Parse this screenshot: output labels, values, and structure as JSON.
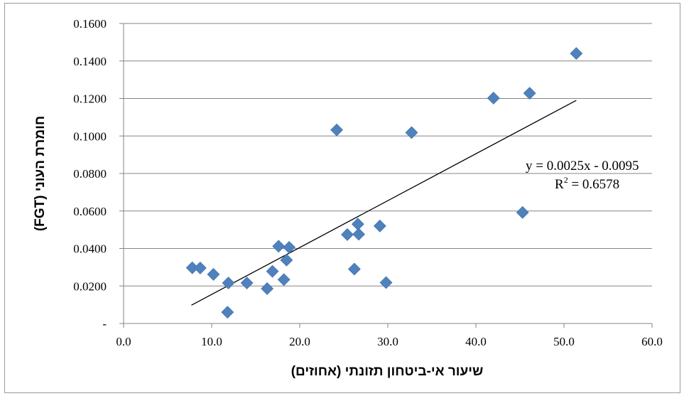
{
  "chart_data": {
    "type": "scatter",
    "title": "",
    "xlabel": "שיעור אי-ביטחון תזונתי (אחוזים)",
    "ylabel": "חומרת העוני (FGT)",
    "xlim": [
      0,
      60
    ],
    "ylim": [
      0,
      0.16
    ],
    "x_ticks": [
      "0.0",
      "10.0",
      "20.0",
      "30.0",
      "40.0",
      "50.0",
      "60.0"
    ],
    "y_ticks": [
      "-",
      "0.0200",
      "0.0400",
      "0.0600",
      "0.0800",
      "0.1000",
      "0.1200",
      "0.1400",
      "0.1600"
    ],
    "grid": "horizontal",
    "legend": "none",
    "marker_color": "#4f81bd",
    "points": [
      {
        "x": 7.8,
        "y": 0.0297
      },
      {
        "x": 8.7,
        "y": 0.0296
      },
      {
        "x": 10.2,
        "y": 0.0262
      },
      {
        "x": 11.8,
        "y": 0.006
      },
      {
        "x": 11.9,
        "y": 0.0216
      },
      {
        "x": 14.0,
        "y": 0.0216
      },
      {
        "x": 16.3,
        "y": 0.0186
      },
      {
        "x": 16.9,
        "y": 0.0278
      },
      {
        "x": 17.6,
        "y": 0.0412
      },
      {
        "x": 18.2,
        "y": 0.0234
      },
      {
        "x": 18.5,
        "y": 0.0338
      },
      {
        "x": 18.8,
        "y": 0.0406
      },
      {
        "x": 24.2,
        "y": 0.1032
      },
      {
        "x": 25.4,
        "y": 0.0474
      },
      {
        "x": 26.2,
        "y": 0.029
      },
      {
        "x": 26.6,
        "y": 0.053
      },
      {
        "x": 26.7,
        "y": 0.0476
      },
      {
        "x": 29.1,
        "y": 0.052
      },
      {
        "x": 29.8,
        "y": 0.0218
      },
      {
        "x": 32.7,
        "y": 0.1018
      },
      {
        "x": 42.0,
        "y": 0.1202
      },
      {
        "x": 45.3,
        "y": 0.0592
      },
      {
        "x": 46.1,
        "y": 0.1228
      },
      {
        "x": 51.4,
        "y": 0.144
      }
    ],
    "trendline": {
      "type": "linear",
      "slope": 0.0025,
      "intercept": -0.0095,
      "x_range": [
        7.7,
        51.4
      ],
      "equation": "y = 0.0025x - 0.0095",
      "r2_label": "R",
      "r2_sup": "2",
      "r2_value": " = 0.6578"
    }
  }
}
